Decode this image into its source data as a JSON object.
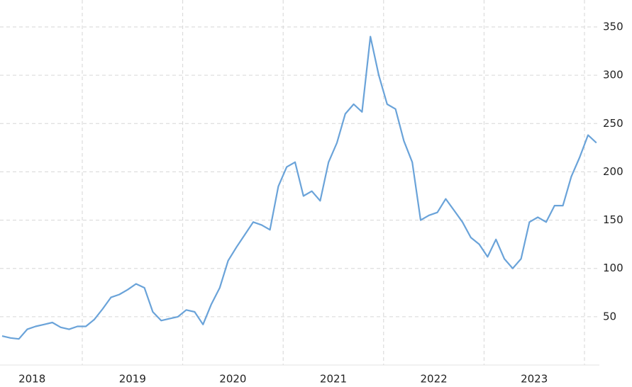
{
  "chart_data": {
    "type": "line",
    "categories": [
      null,
      null,
      null,
      null,
      "2018",
      null,
      null,
      null,
      null,
      null,
      null,
      null,
      null,
      null,
      null,
      null,
      "2019",
      null,
      null,
      null,
      null,
      null,
      null,
      null,
      null,
      null,
      null,
      null,
      "2020",
      null,
      null,
      null,
      null,
      null,
      null,
      null,
      null,
      null,
      null,
      null,
      "2021",
      null,
      null,
      null,
      null,
      null,
      null,
      null,
      null,
      null,
      null,
      null,
      "2022",
      null,
      null,
      null,
      null,
      null,
      null,
      null,
      null,
      null,
      null,
      null,
      "2023",
      null,
      null,
      null,
      null,
      null,
      null,
      null
    ],
    "series": [
      {
        "color": "#6aa3d9",
        "values": [
          30,
          28,
          27,
          37,
          40,
          42,
          44,
          39,
          37,
          40,
          40,
          47,
          58,
          70,
          73,
          78,
          84,
          80,
          55,
          46,
          48,
          50,
          57,
          55,
          42,
          63,
          80,
          108,
          122,
          135,
          148,
          145,
          140,
          185,
          205,
          210,
          175,
          180,
          170,
          210,
          230,
          260,
          270,
          262,
          340,
          300,
          270,
          265,
          232,
          210,
          150,
          155,
          158,
          172,
          160,
          148,
          132,
          125,
          112,
          130,
          110,
          100,
          110,
          148,
          153,
          148,
          165,
          165,
          195,
          215,
          238,
          230
        ]
      }
    ],
    "ylim": [
      0,
      372
    ],
    "yticks": [
      50,
      100,
      150,
      200,
      250,
      300,
      350
    ],
    "grid": true
  }
}
